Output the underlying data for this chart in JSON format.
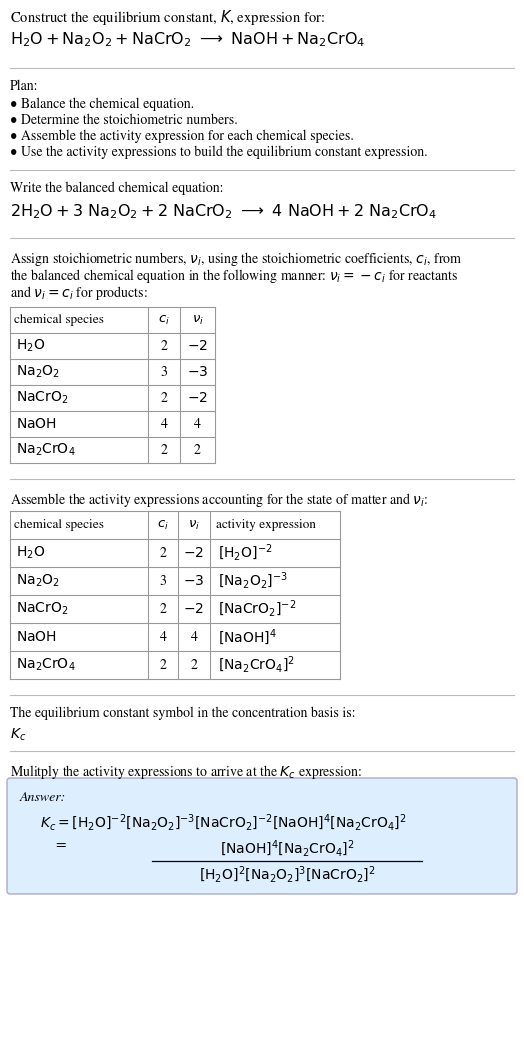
{
  "bg_color": "#ffffff",
  "text_color": "#000000",
  "title_line1": "Construct the equilibrium constant, $K$, expression for:",
  "title_line2": "$\\mathrm{H_2O + Na_2O_2 + NaCrO_2 \\  \\longrightarrow \\ NaOH + Na_2CrO_4}$",
  "plan_header": "Plan:",
  "plan_items": [
    "\\textbullet Balance the chemical equation.",
    "\\textbullet Determine the stoichiometric numbers.",
    "\\textbullet Assemble the activity expression for each chemical species.",
    "\\textbullet Use the activity expressions to build the equilibrium constant expression."
  ],
  "balanced_header": "Write the balanced chemical equation:",
  "balanced_eq": "$2 \\mathrm{H_2O} + 3 \\ \\mathrm{Na_2O_2} + 2 \\ \\mathrm{NaCrO_2} \\ \\longrightarrow \\ 4 \\ \\mathrm{NaOH} + 2 \\ \\mathrm{Na_2CrO_4}$",
  "stoich_text_lines": [
    "Assign stoichiometric numbers, $\\nu_i$, using the stoichiometric coefficients, $c_i$, from",
    "the balanced chemical equation in the following manner: $\\nu_i = -c_i$ for reactants",
    "and $\\nu_i = c_i$ for products:"
  ],
  "table1_header": [
    "chemical species",
    "$c_i$",
    "$\\nu_i$"
  ],
  "table1_data": [
    [
      "$\\mathrm{H_2O}$",
      "2",
      "$-2$"
    ],
    [
      "$\\mathrm{Na_2O_2}$",
      "3",
      "$-3$"
    ],
    [
      "$\\mathrm{NaCrO_2}$",
      "2",
      "$-2$"
    ],
    [
      "$\\mathrm{NaOH}$",
      "4",
      "4"
    ],
    [
      "$\\mathrm{Na_2CrO_4}$",
      "2",
      "2"
    ]
  ],
  "activity_header": "Assemble the activity expressions accounting for the state of matter and $\\nu_i$:",
  "table2_header": [
    "chemical species",
    "$c_i$",
    "$\\nu_i$",
    "activity expression"
  ],
  "table2_data": [
    [
      "$\\mathrm{H_2O}$",
      "2",
      "$-2$",
      "$[\\mathrm{H_2O}]^{-2}$"
    ],
    [
      "$\\mathrm{Na_2O_2}$",
      "3",
      "$-3$",
      "$[\\mathrm{Na_2O_2}]^{-3}$"
    ],
    [
      "$\\mathrm{NaCrO_2}$",
      "2",
      "$-2$",
      "$[\\mathrm{NaCrO_2}]^{-2}$"
    ],
    [
      "$\\mathrm{NaOH}$",
      "4",
      "4",
      "$[\\mathrm{NaOH}]^{4}$"
    ],
    [
      "$\\mathrm{Na_2CrO_4}$",
      "2",
      "2",
      "$[\\mathrm{Na_2CrO_4}]^{2}$"
    ]
  ],
  "kc_header": "The equilibrium constant symbol in the concentration basis is:",
  "kc_symbol": "$K_c$",
  "multiply_header": "Mulitply the activity expressions to arrive at the $K_c$ expression:",
  "answer_label": "Answer:",
  "kc_eq1": "$K_c = [\\mathrm{H_2O}]^{-2} [\\mathrm{Na_2O_2}]^{-3} [\\mathrm{NaCrO_2}]^{-2} [\\mathrm{NaOH}]^{4} [\\mathrm{Na_2CrO_4}]^{2}$",
  "kc_num": "$[\\mathrm{NaOH}]^{4} [\\mathrm{Na_2CrO_4}]^{2}$",
  "kc_den": "$[\\mathrm{H_2O}]^{2} [\\mathrm{Na_2O_2}]^{3} [\\mathrm{NaCrO_2}]^{2}$",
  "answer_box_color": "#ddeeff",
  "table_border_color": "#999999",
  "separator_color": "#bbbbbb",
  "fs_title": 10.5,
  "fs_body": 10.0,
  "fs_table_header": 9.5,
  "fs_table_body": 10.0,
  "fs_answer": 10.0
}
